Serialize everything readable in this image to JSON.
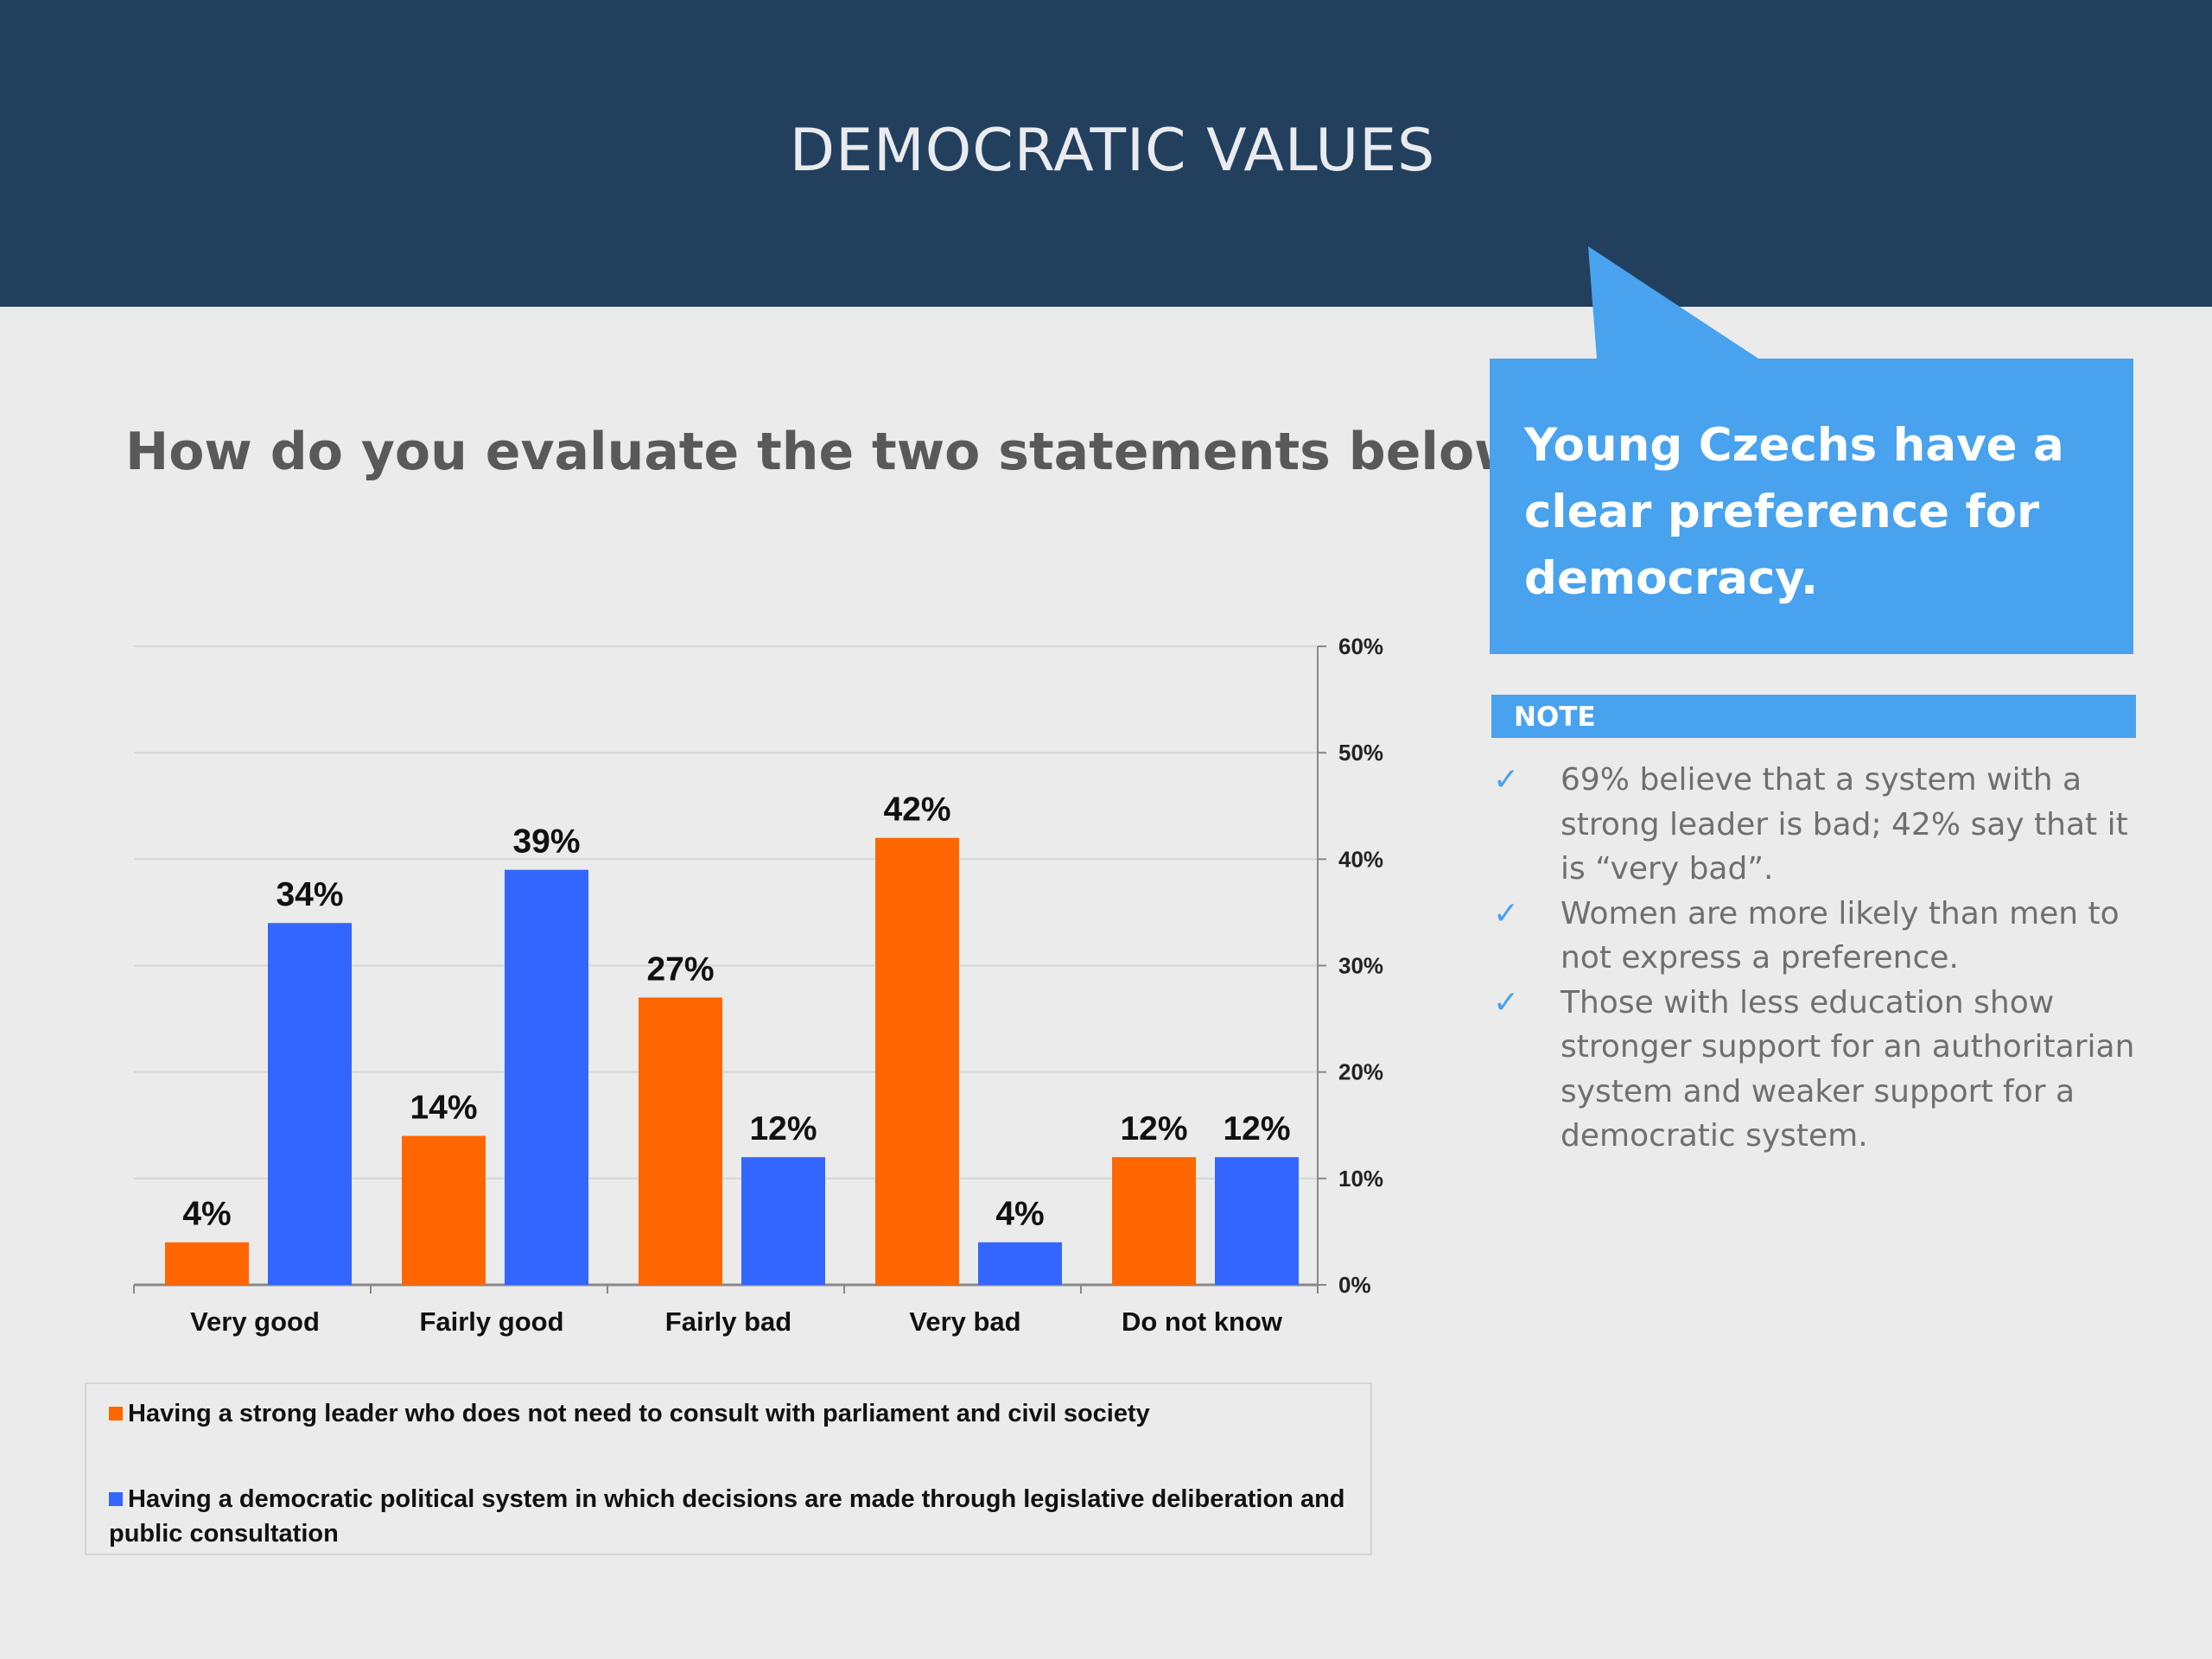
{
  "header": {
    "title": "DEMOCRATIC VALUES"
  },
  "question": "How do you evaluate the two statements below?",
  "callout": {
    "text": "Young Czechs have a clear preference for democracy."
  },
  "note": {
    "heading": "NOTE",
    "items": [
      "69% believe that a system with a strong leader is bad; 42% say  that it is “very bad”.",
      "Women are more likely than men to not express a preference.",
      "Those with less education show stronger support for an authoritarian system and weaker support for a democratic system."
    ]
  },
  "colors": {
    "header_bg": "#233f5e",
    "accent": "#48a2ee",
    "orange": "#ff6600",
    "blue": "#3366ff"
  },
  "chart_data": {
    "type": "bar",
    "categories": [
      "Very good",
      "Fairly good",
      "Fairly bad",
      "Very bad",
      "Do not know"
    ],
    "series": [
      {
        "name": "Having a strong leader who does not need to consult with parliament and civil society",
        "values": [
          4,
          14,
          27,
          42,
          12
        ],
        "labels": [
          "4%",
          "14%",
          "27%",
          "42%",
          "12%"
        ],
        "color": "#ff6600"
      },
      {
        "name": "Having a democratic political system in which decisions are made through legislative deliberation and public consultation",
        "values": [
          34,
          39,
          12,
          4,
          12
        ],
        "labels": [
          "34%",
          "39%",
          "12%",
          "4%",
          "12%"
        ],
        "color": "#3366ff"
      }
    ],
    "y_ticks": [
      "0%",
      "10%",
      "20%",
      "30%",
      "40%",
      "50%",
      "60%"
    ],
    "ylim": [
      0,
      60
    ],
    "y_axis_side": "right",
    "grid": true,
    "legend_position": "bottom"
  }
}
